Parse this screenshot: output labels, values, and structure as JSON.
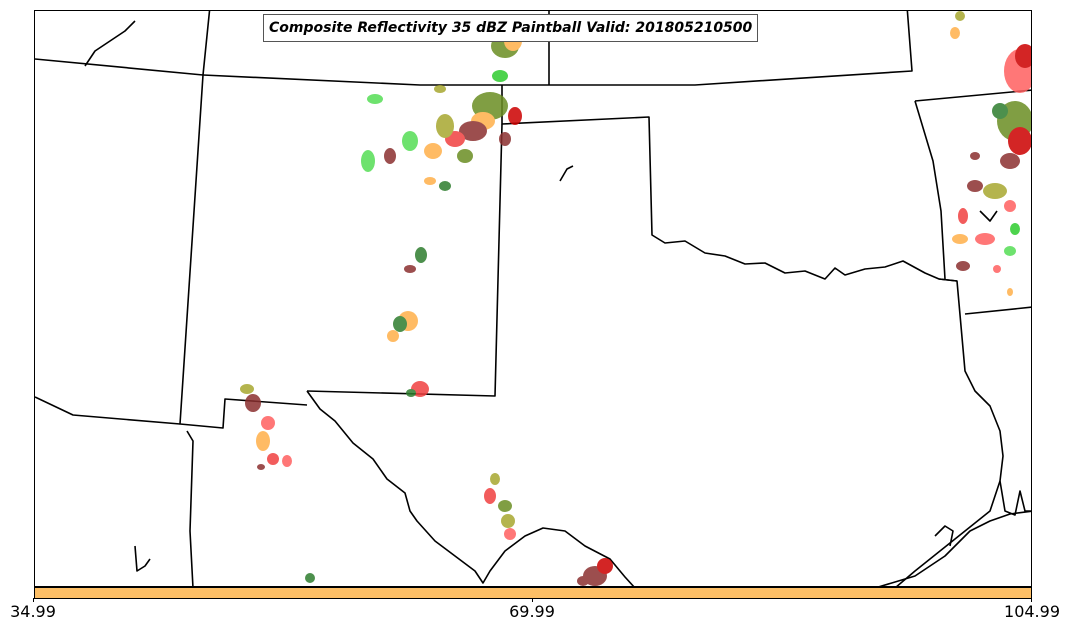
{
  "title": "Composite Reflectivity 35 dBZ Paintball Valid: 201805210500",
  "colorbar": {
    "color": "#fdbf66",
    "tick_labels": [
      "34.99",
      "69.99",
      "104.99"
    ]
  },
  "colors": {
    "boundary": "#000000",
    "member_colors": [
      "#2ecc2e",
      "#55dd55",
      "#f04040",
      "#ff6060",
      "#ffb04a",
      "#a8a830",
      "#8b3030",
      "#2e7d2e",
      "#6b8e23",
      "#cc0000"
    ]
  }
}
